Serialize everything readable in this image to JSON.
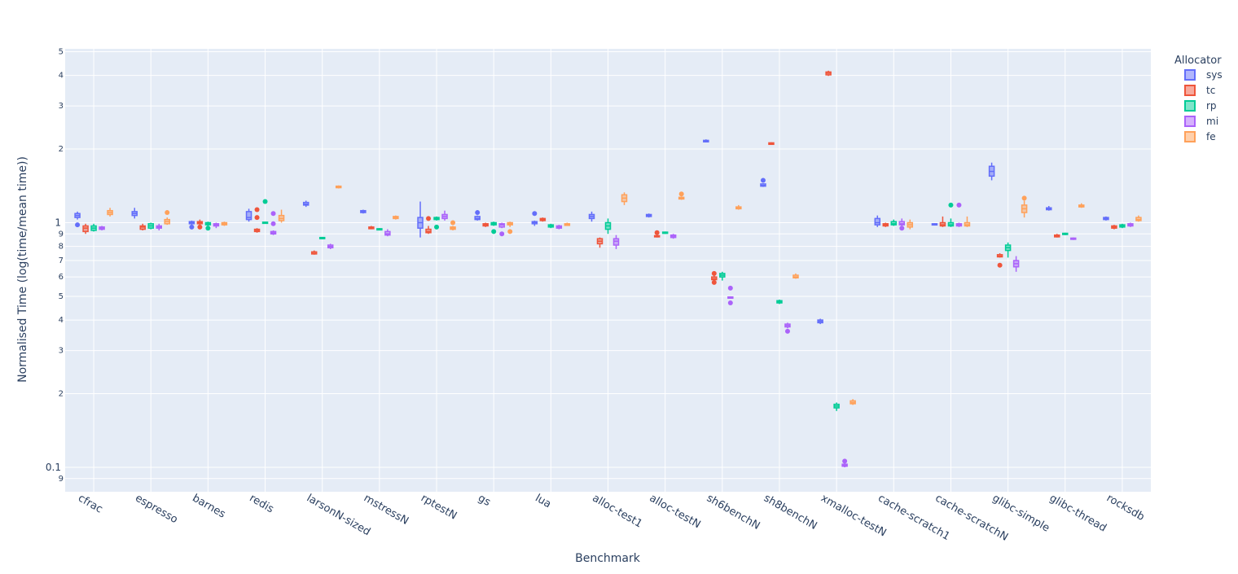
{
  "chart_data": {
    "type": "box",
    "xlabel": "Benchmark",
    "ylabel": "Normalised Time (log(time/mean time))",
    "yscale": "log",
    "ylim": [
      0.08,
      5.3
    ],
    "grid": true,
    "legend_title": "Allocator",
    "legend_position": "top-right",
    "categories": [
      "cfrac",
      "espresso",
      "barnes",
      "redis",
      "larsonN-sized",
      "mstressN",
      "rptestN",
      "gs",
      "lua",
      "alloc-test1",
      "alloc-testN",
      "sh6benchN",
      "sh8benchN",
      "xmalloc-testN",
      "cache-scratch1",
      "cache-scratchN",
      "glibc-simple",
      "glibc-thread",
      "rocksdb"
    ],
    "y_major_ticks": [
      {
        "value": 0.1,
        "label": "0.1"
      },
      {
        "value": 1,
        "label": "1"
      }
    ],
    "y_minor_ticks": [
      {
        "value": 0.09,
        "label": "9"
      },
      {
        "value": 0.2,
        "label": "2"
      },
      {
        "value": 0.3,
        "label": "3"
      },
      {
        "value": 0.4,
        "label": "4"
      },
      {
        "value": 0.5,
        "label": "5"
      },
      {
        "value": 0.6,
        "label": "6"
      },
      {
        "value": 0.7,
        "label": "7"
      },
      {
        "value": 0.8,
        "label": "8"
      },
      {
        "value": 0.9,
        "label": "9"
      },
      {
        "value": 2,
        "label": "2"
      },
      {
        "value": 3,
        "label": "3"
      },
      {
        "value": 4,
        "label": "4"
      },
      {
        "value": 5,
        "label": "5"
      }
    ],
    "series": [
      {
        "name": "sys",
        "color": "#636efa",
        "boxes": [
          [
            1.03,
            1.05,
            1.07,
            1.09,
            1.11,
            [
              0.98
            ]
          ],
          [
            1.04,
            1.07,
            1.09,
            1.11,
            1.15,
            []
          ],
          [
            0.97,
            0.99,
            1.0,
            1.01,
            1.02,
            [
              0.96
            ]
          ],
          [
            1.01,
            1.03,
            1.05,
            1.11,
            1.14,
            []
          ],
          [
            1.16,
            1.18,
            1.19,
            1.21,
            1.23,
            []
          ],
          [
            1.09,
            1.1,
            1.11,
            1.12,
            1.13,
            []
          ],
          [
            0.87,
            0.95,
            1.0,
            1.05,
            1.22,
            []
          ],
          [
            1.02,
            1.03,
            1.04,
            1.06,
            1.07,
            [
              1.1
            ]
          ],
          [
            0.97,
            0.99,
            1.0,
            1.01,
            1.02,
            [
              1.09
            ]
          ],
          [
            1.01,
            1.04,
            1.06,
            1.08,
            1.11,
            []
          ],
          [
            1.05,
            1.06,
            1.07,
            1.08,
            1.09,
            []
          ],
          [
            2.13,
            2.14,
            2.15,
            2.17,
            2.19,
            []
          ],
          [
            1.4,
            1.41,
            1.42,
            1.44,
            1.45,
            [
              1.49
            ]
          ],
          [
            0.385,
            0.39,
            0.395,
            0.4,
            0.405,
            []
          ],
          [
            0.96,
            0.98,
            1.0,
            1.04,
            1.07,
            []
          ],
          [
            0.975,
            0.98,
            0.985,
            0.99,
            0.995,
            []
          ],
          [
            1.49,
            1.55,
            1.62,
            1.7,
            1.76,
            []
          ],
          [
            1.12,
            1.13,
            1.14,
            1.15,
            1.17,
            []
          ],
          [
            1.02,
            1.03,
            1.04,
            1.05,
            1.06,
            []
          ]
        ]
      },
      {
        "name": "tc",
        "color": "#ef553b",
        "boxes": [
          [
            0.9,
            0.92,
            0.95,
            0.97,
            0.99,
            []
          ],
          [
            0.93,
            0.94,
            0.96,
            0.97,
            0.99,
            []
          ],
          [
            0.98,
            0.99,
            1.0,
            1.01,
            1.03,
            [
              0.96
            ]
          ],
          [
            0.91,
            0.92,
            0.93,
            0.94,
            0.95,
            [
              1.05,
              1.13
            ]
          ],
          [
            0.74,
            0.745,
            0.75,
            0.76,
            0.77,
            []
          ],
          [
            0.94,
            0.945,
            0.95,
            0.96,
            0.97,
            []
          ],
          [
            0.9,
            0.91,
            0.92,
            0.94,
            0.97,
            [
              1.04
            ]
          ],
          [
            0.96,
            0.97,
            0.98,
            0.99,
            1.0,
            []
          ],
          [
            1.01,
            1.02,
            1.03,
            1.04,
            1.05,
            []
          ],
          [
            0.79,
            0.82,
            0.84,
            0.86,
            0.87,
            []
          ],
          [
            0.87,
            0.875,
            0.88,
            0.885,
            0.89,
            [
              0.91
            ]
          ],
          [
            0.58,
            0.585,
            0.59,
            0.6,
            0.61,
            [
              0.57,
              0.62
            ]
          ],
          [
            2.08,
            2.09,
            2.1,
            2.12,
            2.13,
            []
          ],
          [
            3.98,
            4.02,
            4.08,
            4.13,
            4.18,
            []
          ],
          [
            0.96,
            0.97,
            0.98,
            0.99,
            1.0,
            []
          ],
          [
            0.96,
            0.97,
            0.98,
            1.0,
            1.06,
            []
          ],
          [
            0.72,
            0.725,
            0.73,
            0.74,
            0.75,
            [
              0.67
            ]
          ],
          [
            0.87,
            0.875,
            0.88,
            0.89,
            0.9,
            []
          ],
          [
            0.94,
            0.95,
            0.96,
            0.97,
            0.98,
            []
          ]
        ]
      },
      {
        "name": "rp",
        "color": "#00cc96",
        "boxes": [
          [
            0.92,
            0.93,
            0.95,
            0.97,
            0.99,
            []
          ],
          [
            0.94,
            0.95,
            0.97,
            0.99,
            1.0,
            []
          ],
          [
            0.97,
            0.98,
            0.99,
            1.0,
            1.01,
            [
              0.95
            ]
          ],
          [
            0.99,
            0.995,
            1.0,
            1.005,
            1.01,
            [
              1.22
            ]
          ],
          [
            0.855,
            0.86,
            0.865,
            0.87,
            0.875,
            []
          ],
          [
            0.93,
            0.935,
            0.94,
            0.945,
            0.95,
            []
          ],
          [
            1.02,
            1.03,
            1.04,
            1.05,
            1.06,
            [
              0.96
            ]
          ],
          [
            0.97,
            0.98,
            0.99,
            1.0,
            1.01,
            [
              0.92
            ]
          ],
          [
            0.95,
            0.96,
            0.97,
            0.98,
            0.99,
            []
          ],
          [
            0.9,
            0.94,
            0.97,
            1.0,
            1.04,
            []
          ],
          [
            0.9,
            0.905,
            0.91,
            0.915,
            0.92,
            []
          ],
          [
            0.58,
            0.6,
            0.61,
            0.62,
            0.63,
            []
          ],
          [
            0.465,
            0.47,
            0.475,
            0.48,
            0.485,
            []
          ],
          [
            0.17,
            0.175,
            0.178,
            0.181,
            0.184,
            []
          ],
          [
            0.97,
            0.98,
            0.99,
            1.01,
            1.03,
            []
          ],
          [
            0.96,
            0.97,
            0.98,
            1.0,
            1.04,
            [
              1.18
            ]
          ],
          [
            0.72,
            0.77,
            0.79,
            0.81,
            0.83,
            []
          ],
          [
            0.89,
            0.895,
            0.9,
            0.905,
            0.91,
            []
          ],
          [
            0.95,
            0.96,
            0.97,
            0.98,
            0.99,
            []
          ]
        ]
      },
      {
        "name": "mi",
        "color": "#ab63fa",
        "boxes": [
          [
            0.93,
            0.94,
            0.95,
            0.96,
            0.97,
            []
          ],
          [
            0.93,
            0.95,
            0.96,
            0.97,
            0.99,
            []
          ],
          [
            0.95,
            0.97,
            0.98,
            0.99,
            1.0,
            []
          ],
          [
            0.89,
            0.9,
            0.91,
            0.92,
            0.93,
            [
              0.99,
              1.09
            ]
          ],
          [
            0.78,
            0.79,
            0.8,
            0.81,
            0.82,
            []
          ],
          [
            0.88,
            0.89,
            0.9,
            0.92,
            0.94,
            []
          ],
          [
            1.02,
            1.04,
            1.06,
            1.08,
            1.12,
            []
          ],
          [
            0.95,
            0.96,
            0.98,
            0.99,
            1.0,
            [
              0.9
            ]
          ],
          [
            0.94,
            0.95,
            0.96,
            0.97,
            0.98,
            []
          ],
          [
            0.78,
            0.81,
            0.84,
            0.86,
            0.89,
            []
          ],
          [
            0.86,
            0.87,
            0.88,
            0.89,
            0.9,
            []
          ],
          [
            0.49,
            0.492,
            0.495,
            0.497,
            0.5,
            [
              0.47,
              0.54
            ]
          ],
          [
            0.37,
            0.375,
            0.38,
            0.385,
            0.39,
            [
              0.36
            ]
          ],
          [
            0.1,
            0.101,
            0.102,
            0.103,
            0.105,
            [
              0.106
            ]
          ],
          [
            0.97,
            0.98,
            0.99,
            1.01,
            1.04,
            [
              0.95
            ]
          ],
          [
            0.96,
            0.97,
            0.98,
            0.99,
            1.0,
            [
              1.18
            ]
          ],
          [
            0.63,
            0.66,
            0.68,
            0.7,
            0.73,
            []
          ],
          [
            0.85,
            0.855,
            0.86,
            0.865,
            0.87,
            []
          ],
          [
            0.96,
            0.97,
            0.98,
            0.99,
            1.0,
            []
          ]
        ]
      },
      {
        "name": "fe",
        "color": "#ffa15a",
        "boxes": [
          [
            1.06,
            1.08,
            1.1,
            1.12,
            1.15,
            []
          ],
          [
            0.98,
            0.99,
            1.01,
            1.03,
            1.05,
            [
              1.1
            ]
          ],
          [
            0.97,
            0.98,
            0.99,
            1.0,
            1.01,
            []
          ],
          [
            1.0,
            1.02,
            1.04,
            1.07,
            1.13,
            []
          ],
          [
            1.38,
            1.39,
            1.4,
            1.41,
            1.42,
            []
          ],
          [
            1.03,
            1.04,
            1.05,
            1.06,
            1.07,
            []
          ],
          [
            0.93,
            0.94,
            0.95,
            0.96,
            0.97,
            [
              1.0
            ]
          ],
          [
            0.96,
            0.98,
            0.99,
            1.0,
            1.01,
            [
              0.92
            ]
          ],
          [
            0.97,
            0.975,
            0.98,
            0.99,
            1.0,
            []
          ],
          [
            1.18,
            1.22,
            1.26,
            1.3,
            1.33,
            []
          ],
          [
            1.24,
            1.25,
            1.26,
            1.27,
            1.28,
            [
              1.31
            ]
          ],
          [
            1.13,
            1.14,
            1.15,
            1.16,
            1.18,
            []
          ],
          [
            0.59,
            0.595,
            0.6,
            0.61,
            0.62,
            []
          ],
          [
            0.18,
            0.182,
            0.184,
            0.187,
            0.19,
            []
          ],
          [
            0.94,
            0.96,
            0.98,
            1.0,
            1.03,
            []
          ],
          [
            0.96,
            0.97,
            0.98,
            1.0,
            1.06,
            []
          ],
          [
            1.05,
            1.1,
            1.14,
            1.18,
            1.23,
            [
              1.26
            ]
          ],
          [
            1.15,
            1.16,
            1.17,
            1.18,
            1.2,
            []
          ],
          [
            1.01,
            1.02,
            1.03,
            1.05,
            1.07,
            []
          ]
        ]
      }
    ]
  }
}
